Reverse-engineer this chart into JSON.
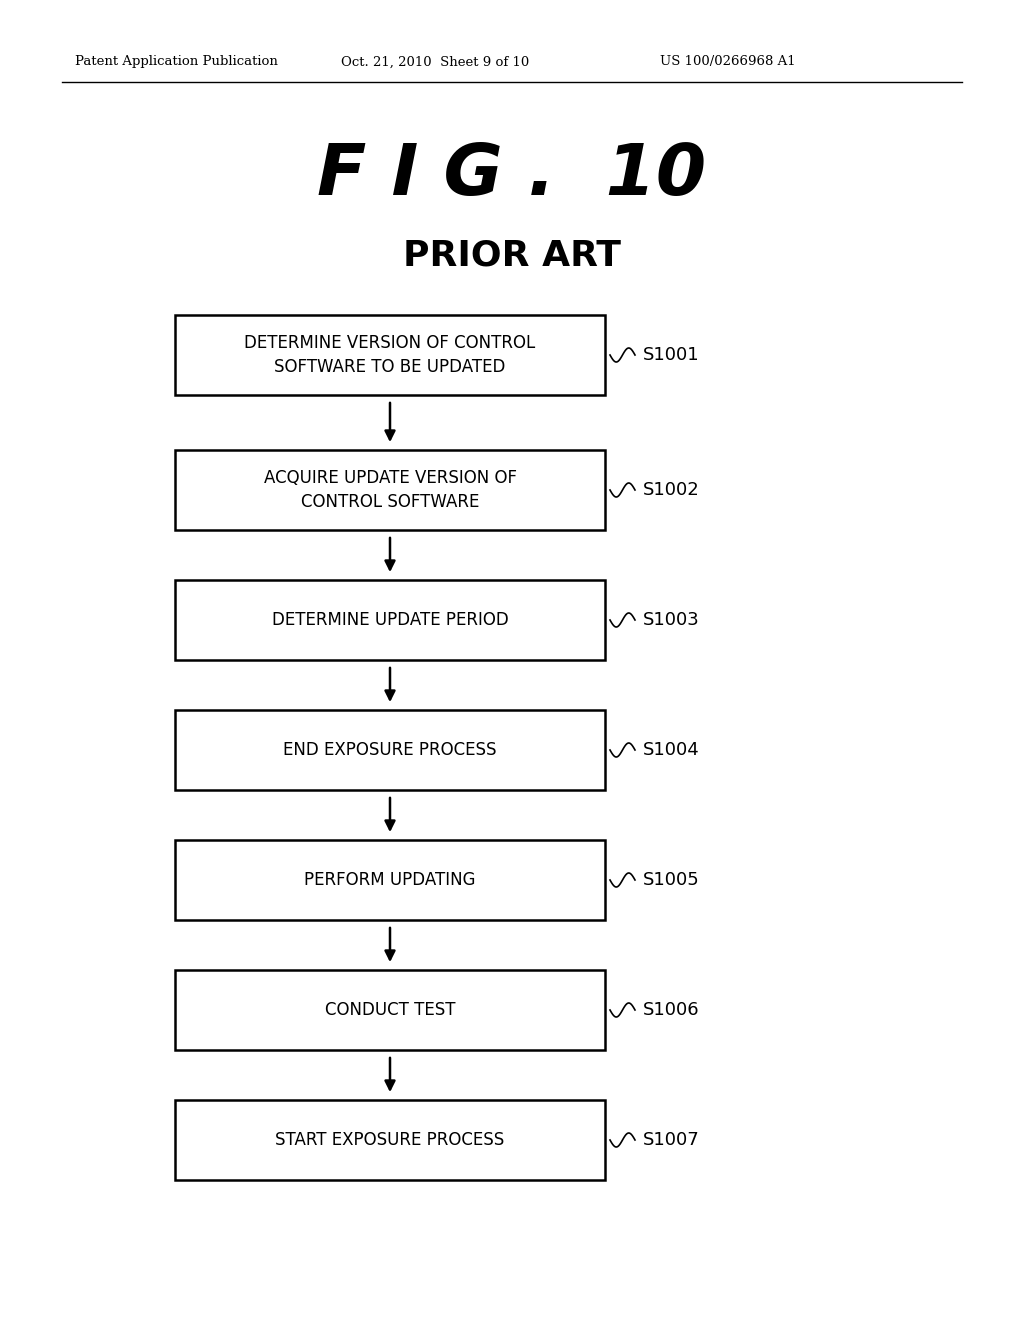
{
  "header_left": "Patent Application Publication",
  "header_mid": "Oct. 21, 2010  Sheet 9 of 10",
  "header_right": "US 100/0266968 A1",
  "fig_title": "F I G .  10",
  "fig_subtitle": "PRIOR ART",
  "steps": [
    {
      "label": "DETERMINE VERSION OF CONTROL\nSOFTWARE TO BE UPDATED",
      "step_id": "S1001"
    },
    {
      "label": "ACQUIRE UPDATE VERSION OF\nCONTROL SOFTWARE",
      "step_id": "S1002"
    },
    {
      "label": "DETERMINE UPDATE PERIOD",
      "step_id": "S1003"
    },
    {
      "label": "END EXPOSURE PROCESS",
      "step_id": "S1004"
    },
    {
      "label": "PERFORM UPDATING",
      "step_id": "S1005"
    },
    {
      "label": "CONDUCT TEST",
      "step_id": "S1006"
    },
    {
      "label": "START EXPOSURE PROCESS",
      "step_id": "S1007"
    }
  ],
  "background_color": "#ffffff",
  "box_color": "#ffffff",
  "box_edge_color": "#000000",
  "text_color": "#000000",
  "arrow_color": "#000000",
  "fig_width": 10.24,
  "fig_height": 13.2,
  "dpi": 100
}
